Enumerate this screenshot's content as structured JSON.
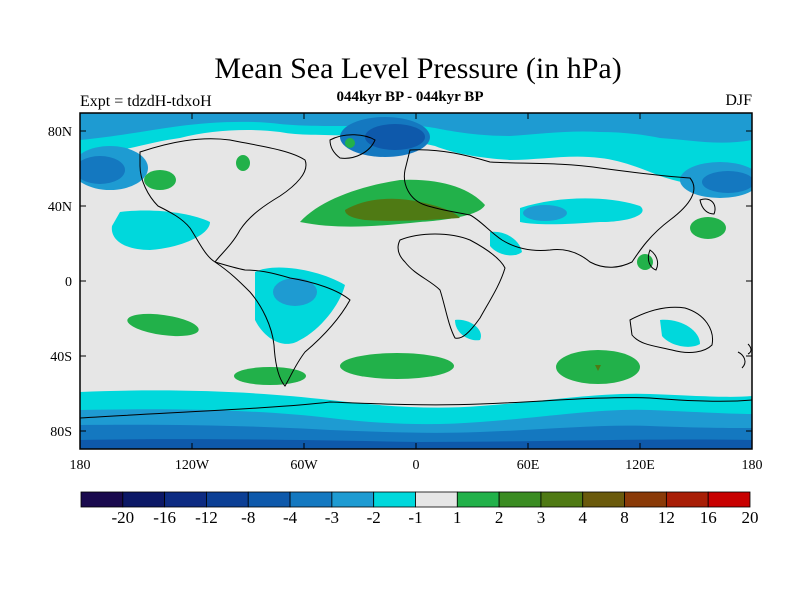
{
  "header": {
    "title": "Mean Sea Level Pressure (in hPa)",
    "subtitle": "044kyr BP - 044kyr BP",
    "experiment": "Expt = tdzdH-tdxoH",
    "season": "DJF"
  },
  "map": {
    "lat_ticks": [
      "80N",
      "40N",
      "0",
      "40S",
      "80S"
    ],
    "lon_ticks": [
      "180",
      "120W",
      "60W",
      "0",
      "60E",
      "120E",
      "180"
    ]
  },
  "colorbar": {
    "labels": [
      "-20",
      "-16",
      "-12",
      "-8",
      "-4",
      "-3",
      "-2",
      "-1",
      "1",
      "2",
      "3",
      "4",
      "8",
      "12",
      "16",
      "20"
    ],
    "colors": [
      "#1a0a4e",
      "#0c1866",
      "#0d2b82",
      "#0c3f95",
      "#0e59ab",
      "#1478c0",
      "#1e9bd2",
      "#00d8dc",
      "#e6e6e6",
      "#22b14a",
      "#3a8c22",
      "#4f7a14",
      "#6a5a0c",
      "#8a3a08",
      "#a81e06",
      "#c80000"
    ]
  }
}
